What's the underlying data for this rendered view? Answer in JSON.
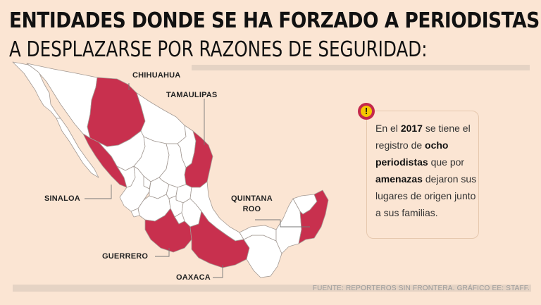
{
  "title": {
    "line1": "ENTIDADES DONDE SE HA FORZADO A PERIODISTAS",
    "line2": "A DESPLAZARSE POR RAZONES DE SEGURIDAD:"
  },
  "map": {
    "country": "México",
    "highlight_color": "#c8304e",
    "base_color": "#ffffff",
    "border_color": "#a39a94",
    "highlighted_states": [
      {
        "key": "chihuahua",
        "label": "CHIHUAHUA"
      },
      {
        "key": "tamaulipas",
        "label": "TAMAULIPAS"
      },
      {
        "key": "sinaloa",
        "label": "SINALOA"
      },
      {
        "key": "quintana_roo",
        "label": "QUINTANA ROO",
        "label_lines": [
          "QUINTANA",
          "ROO"
        ]
      },
      {
        "key": "guerrero",
        "label": "GUERRERO"
      },
      {
        "key": "oaxaca",
        "label": "OAXACA"
      }
    ]
  },
  "callout": {
    "icon": "exclamation-icon",
    "t1": "En el ",
    "b1": "2017",
    "t2": " se tiene el registro de ",
    "b2": "ocho periodistas",
    "t3": " que por ",
    "b3": "amenazas",
    "t4": " dejaron sus lugares de origen junto a sus familias."
  },
  "source": "FUENTE: REPORTEROS SIN FRONTERA.  GRÁFICO EE: STAFF."
}
